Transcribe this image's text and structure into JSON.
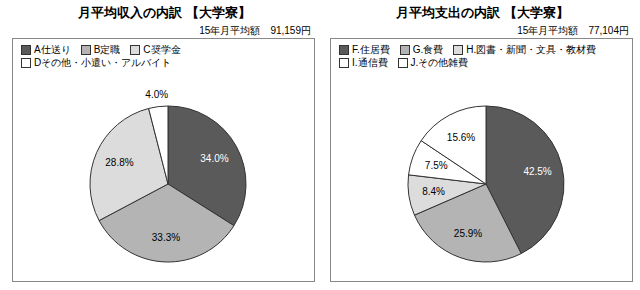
{
  "chart_data": [
    {
      "type": "pie",
      "title": "月平均収入の内訳 【大学寮】",
      "subtitle": "15年月平均額　91,159円",
      "categories": [
        "A仕送り",
        "B定職",
        "C奨学金",
        "Dその他・小遣い・アルバイト"
      ],
      "values": [
        34.0,
        33.3,
        28.8,
        4.0
      ],
      "value_labels": [
        "34.0%",
        "33.3%",
        "28.8%",
        "4.0%"
      ],
      "colors": [
        "#5a5a5a",
        "#b4b4b4",
        "#dcdcdc",
        "#ffffff"
      ],
      "data_labels": true
    },
    {
      "type": "pie",
      "title": "月平均支出の内訳 【大学寮】",
      "subtitle": "15年月平均額　77,104円",
      "categories": [
        "F.住居費",
        "G.食費",
        "H.図書・新聞・文具・教材費",
        "I.通信費",
        "J.その他雑費"
      ],
      "values": [
        42.5,
        25.9,
        8.4,
        7.5,
        15.6
      ],
      "value_labels": [
        "42.5%",
        "25.9%",
        "8.4%",
        "7.5%",
        "15.6%"
      ],
      "colors": [
        "#5a5a5a",
        "#b4b4b4",
        "#dcdcdc",
        "#ffffff",
        "#ffffff"
      ],
      "data_labels": true
    }
  ]
}
